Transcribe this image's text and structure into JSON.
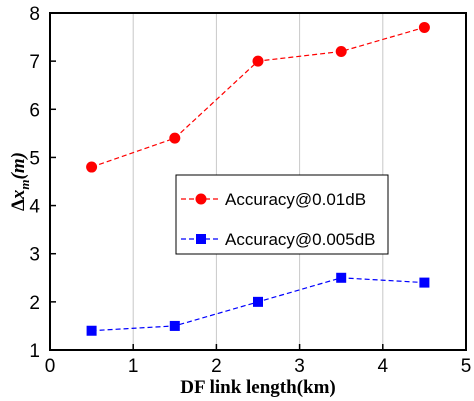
{
  "chart_data": {
    "type": "line",
    "title": "",
    "xlabel": "DF link length(km)",
    "ylabel_parts": {
      "delta": "Δ",
      "x": "x",
      "sub": "m",
      "unit": "(m)"
    },
    "xlim": [
      0,
      5
    ],
    "ylim": [
      1,
      8
    ],
    "xticks": [
      "0",
      "1",
      "2",
      "3",
      "4",
      "5"
    ],
    "yticks": [
      "1",
      "2",
      "3",
      "4",
      "5",
      "6",
      "7",
      "8"
    ],
    "grid": "vertical",
    "legend_position": "center-right",
    "series": [
      {
        "name": "Accuracy@0.01dB",
        "color": "#ff0000",
        "marker": "circle",
        "line": "dashed",
        "x": [
          0.5,
          1.5,
          2.5,
          3.5,
          4.5
        ],
        "y": [
          4.8,
          5.4,
          7.0,
          7.2,
          7.7
        ]
      },
      {
        "name": "Accuracy@0.005dB",
        "color": "#0000ff",
        "marker": "square",
        "line": "dashed",
        "x": [
          0.5,
          1.5,
          2.5,
          3.5,
          4.5
        ],
        "y": [
          1.4,
          1.5,
          2.0,
          2.5,
          2.4
        ]
      }
    ]
  }
}
